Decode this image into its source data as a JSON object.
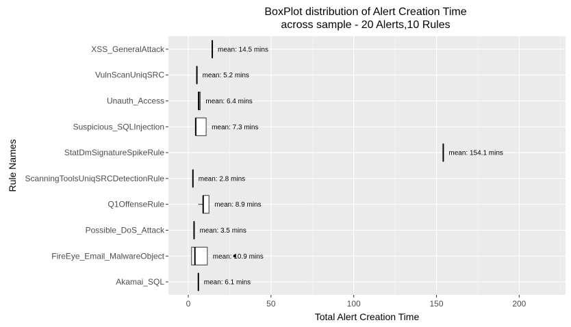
{
  "chart_data": {
    "type": "boxplot",
    "orientation": "horizontal",
    "title_line1": "BoxPlot distribution of Alert Creation Time",
    "title_line2": "across sample - 20 Alerts,10 Rules",
    "xlabel": "Total Alert Creation Time",
    "ylabel": "Rule Names",
    "xlim": [
      -12,
      228
    ],
    "xticks": [
      0,
      50,
      100,
      150,
      200
    ],
    "xtick_labels": [
      "0",
      "50",
      "100",
      "150",
      "200"
    ],
    "grid": true,
    "background": "#ebebeb",
    "grid_color": "#ffffff",
    "rules": [
      {
        "name": "XSS_GeneralAttack",
        "q1": 14.5,
        "median": 14.5,
        "q3": 14.5,
        "wmin": 14.5,
        "wmax": 14.5,
        "outliers": [],
        "mean_label": "mean: 14.5 mins"
      },
      {
        "name": "VulnScanUniqSRC",
        "q1": 5.2,
        "median": 5.2,
        "q3": 5.2,
        "wmin": 5.2,
        "wmax": 5.2,
        "outliers": [],
        "mean_label": "mean: 5.2 mins"
      },
      {
        "name": "Unauth_Access",
        "q1": 6,
        "median": 6.4,
        "q3": 7.2,
        "wmin": 6,
        "wmax": 7.2,
        "outliers": [],
        "mean_label": "mean: 6.4 mins"
      },
      {
        "name": "Suspicious_SQLInjection",
        "q1": 4.5,
        "median": 4.5,
        "q3": 10.8,
        "wmin": 4.5,
        "wmax": 10.8,
        "outliers": [],
        "mean_label": "mean: 7.3 mins"
      },
      {
        "name": "StatDmSignatureSpikeRule",
        "q1": 154.1,
        "median": 154.1,
        "q3": 154.1,
        "wmin": 154.1,
        "wmax": 154.1,
        "outliers": [],
        "mean_label": "mean: 154.1 mins"
      },
      {
        "name": "ScanningToolsUniqSRCDetectionRule",
        "q1": 2.8,
        "median": 2.8,
        "q3": 2.8,
        "wmin": 2.8,
        "wmax": 2.8,
        "outliers": [],
        "mean_label": "mean: 2.8 mins"
      },
      {
        "name": "Q1OffenseRule",
        "q1": 9,
        "median": 9,
        "q3": 12.5,
        "wmin": 6,
        "wmax": 12.5,
        "outliers": [],
        "mean_label": "mean: 8.9 mins"
      },
      {
        "name": "Possible_DoS_Attack",
        "q1": 3.5,
        "median": 3.5,
        "q3": 3.5,
        "wmin": 3.5,
        "wmax": 3.5,
        "outliers": [],
        "mean_label": "mean: 3.5 mins"
      },
      {
        "name": "FireEye_Email_MalwareObject",
        "q1": 2,
        "median": 4,
        "q3": 11.5,
        "wmin": 2,
        "wmax": 11.5,
        "outliers": [
          28
        ],
        "mean_label": "mean: 10.9 mins"
      },
      {
        "name": "Akamai_SQL",
        "q1": 6.1,
        "median": 6.1,
        "q3": 6.1,
        "wmin": 6.1,
        "wmax": 6.1,
        "outliers": [],
        "mean_label": "mean: 6.1 mins"
      }
    ]
  }
}
